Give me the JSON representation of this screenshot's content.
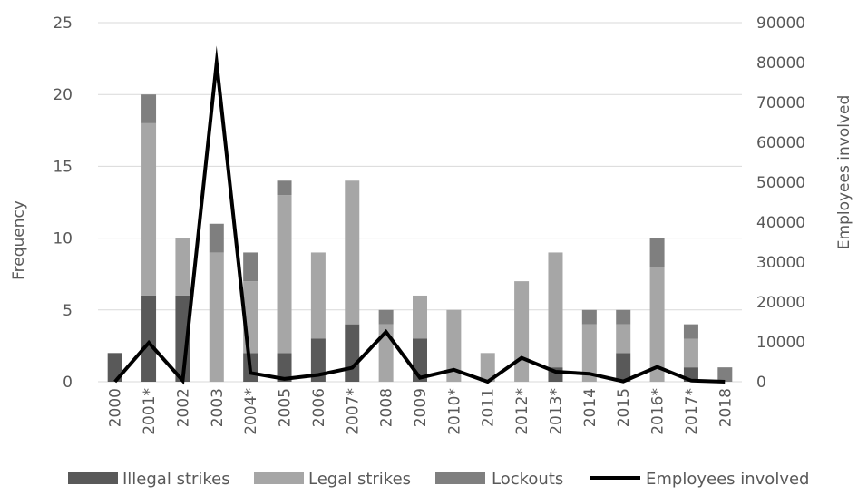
{
  "chart_data": {
    "type": "bar",
    "stacked": true,
    "categories": [
      "2000",
      "2001*",
      "2002",
      "2003",
      "2004*",
      "2005",
      "2006",
      "2007*",
      "2008",
      "2009",
      "2010*",
      "2011",
      "2012*",
      "2013*",
      "2014",
      "2015",
      "2016*",
      "2017*",
      "2018"
    ],
    "series": [
      {
        "name": "Illegal strikes",
        "type": "bar",
        "axis": "left",
        "color": "#595959",
        "values": [
          2,
          6,
          6,
          0,
          2,
          2,
          3,
          4,
          0,
          3,
          0,
          0,
          0,
          1,
          0,
          2,
          0,
          1,
          0
        ]
      },
      {
        "name": "Legal strikes",
        "type": "bar",
        "axis": "left",
        "color": "#a6a6a6",
        "values": [
          0,
          12,
          4,
          9,
          5,
          11,
          6,
          10,
          4,
          3,
          5,
          2,
          7,
          8,
          4,
          2,
          8,
          2,
          0
        ]
      },
      {
        "name": "Lockouts",
        "type": "bar",
        "axis": "left",
        "color": "#7f7f7f",
        "values": [
          0,
          2,
          0,
          2,
          2,
          1,
          0,
          0,
          1,
          0,
          0,
          0,
          0,
          0,
          1,
          1,
          2,
          1,
          1
        ]
      },
      {
        "name": "Employees involved",
        "type": "line",
        "axis": "right",
        "color": "#000000",
        "values": [
          0,
          9800,
          300,
          80000,
          2200,
          700,
          1700,
          3500,
          12500,
          1000,
          3000,
          0,
          6000,
          2500,
          2000,
          100,
          3700,
          300,
          0
        ]
      }
    ],
    "ylabel": "Frequency",
    "y2label": "Employees involved",
    "ylim": [
      0,
      25
    ],
    "yticks": [
      0,
      5,
      10,
      15,
      20,
      25
    ],
    "y2lim": [
      0,
      90000
    ],
    "y2ticks": [
      0,
      10000,
      20000,
      30000,
      40000,
      50000,
      60000,
      70000,
      80000,
      90000
    ],
    "grid": true,
    "legend": "bottom"
  }
}
